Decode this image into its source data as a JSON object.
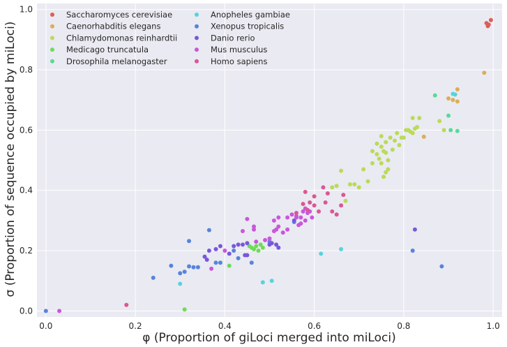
{
  "chart_data": {
    "type": "scatter",
    "title": "",
    "xlabel": "φ (Proportion of giLoci merged into miLoci)",
    "ylabel": "σ (Proportion of sequence occupied by miLoci)",
    "xlim": [
      -0.02,
      1.02
    ],
    "ylim": [
      -0.02,
      1.02
    ],
    "xticks": [
      0.0,
      0.2,
      0.4,
      0.6,
      0.8,
      1.0
    ],
    "yticks": [
      0.0,
      0.2,
      0.4,
      0.6,
      0.8,
      1.0
    ],
    "xtick_labels": [
      "0.0",
      "0.2",
      "0.4",
      "0.6",
      "0.8",
      "1.0"
    ],
    "ytick_labels": [
      "0.0",
      "0.2",
      "0.4",
      "0.6",
      "0.8",
      "1.0"
    ],
    "grid": true,
    "background": "#eaeaf2",
    "legend_position": "top-left",
    "legend_columns": 2,
    "series": [
      {
        "name": "Saccharomyces cerevisiae",
        "color": "#db5f57",
        "points": [
          [
            0.985,
            0.955
          ],
          [
            0.99,
            0.95
          ],
          [
            0.995,
            0.965
          ],
          [
            0.988,
            0.945
          ]
        ]
      },
      {
        "name": "Caenorhabditis elegans",
        "color": "#dbae57",
        "points": [
          [
            0.98,
            0.79
          ],
          [
            0.92,
            0.735
          ],
          [
            0.91,
            0.7
          ],
          [
            0.92,
            0.695
          ],
          [
            0.845,
            0.578
          ],
          [
            0.9,
            0.705
          ]
        ]
      },
      {
        "name": "Chlamydomonas reinhardtii",
        "color": "#b9db57",
        "points": [
          [
            0.68,
            0.42
          ],
          [
            0.66,
            0.465
          ],
          [
            0.67,
            0.365
          ],
          [
            0.69,
            0.42
          ],
          [
            0.7,
            0.41
          ],
          [
            0.71,
            0.47
          ],
          [
            0.72,
            0.43
          ],
          [
            0.73,
            0.49
          ],
          [
            0.74,
            0.52
          ],
          [
            0.745,
            0.505
          ],
          [
            0.75,
            0.545
          ],
          [
            0.755,
            0.53
          ],
          [
            0.76,
            0.56
          ],
          [
            0.75,
            0.58
          ],
          [
            0.77,
            0.575
          ],
          [
            0.765,
            0.47
          ],
          [
            0.76,
            0.46
          ],
          [
            0.78,
            0.565
          ],
          [
            0.79,
            0.55
          ],
          [
            0.8,
            0.575
          ],
          [
            0.81,
            0.6
          ],
          [
            0.815,
            0.595
          ],
          [
            0.82,
            0.59
          ],
          [
            0.83,
            0.61
          ],
          [
            0.835,
            0.64
          ],
          [
            0.82,
            0.64
          ],
          [
            0.88,
            0.63
          ],
          [
            0.89,
            0.6
          ],
          [
            0.74,
            0.555
          ],
          [
            0.75,
            0.49
          ],
          [
            0.76,
            0.525
          ],
          [
            0.64,
            0.41
          ],
          [
            0.65,
            0.415
          ],
          [
            0.73,
            0.53
          ],
          [
            0.785,
            0.59
          ],
          [
            0.795,
            0.575
          ],
          [
            0.805,
            0.6
          ],
          [
            0.825,
            0.605
          ],
          [
            0.765,
            0.5
          ],
          [
            0.775,
            0.535
          ],
          [
            0.755,
            0.445
          ]
        ]
      },
      {
        "name": "Medicago truncatula",
        "color": "#6edb57",
        "points": [
          [
            0.41,
            0.15
          ],
          [
            0.465,
            0.205
          ],
          [
            0.47,
            0.215
          ],
          [
            0.475,
            0.2
          ],
          [
            0.48,
            0.22
          ],
          [
            0.485,
            0.21
          ],
          [
            0.46,
            0.21
          ],
          [
            0.455,
            0.215
          ],
          [
            0.31,
            0.005
          ]
        ]
      },
      {
        "name": "Drosophila melanogaster",
        "color": "#57db94",
        "points": [
          [
            0.87,
            0.715
          ],
          [
            0.9,
            0.648
          ],
          [
            0.905,
            0.6
          ],
          [
            0.92,
            0.597
          ]
        ]
      },
      {
        "name": "Anopheles gambiae",
        "color": "#57d3db",
        "points": [
          [
            0.3,
            0.09
          ],
          [
            0.485,
            0.095
          ],
          [
            0.505,
            0.1
          ],
          [
            0.615,
            0.19
          ],
          [
            0.66,
            0.205
          ],
          [
            0.91,
            0.72
          ],
          [
            0.915,
            0.718
          ]
        ]
      },
      {
        "name": "Xenopus tropicalis",
        "color": "#5784db",
        "points": [
          [
            0.0,
            0.0
          ],
          [
            0.24,
            0.11
          ],
          [
            0.28,
            0.15
          ],
          [
            0.3,
            0.125
          ],
          [
            0.31,
            0.13
          ],
          [
            0.32,
            0.148
          ],
          [
            0.33,
            0.145
          ],
          [
            0.34,
            0.145
          ],
          [
            0.32,
            0.232
          ],
          [
            0.365,
            0.268
          ],
          [
            0.38,
            0.16
          ],
          [
            0.39,
            0.16
          ],
          [
            0.46,
            0.16
          ],
          [
            0.5,
            0.23
          ],
          [
            0.555,
            0.295
          ],
          [
            0.82,
            0.2
          ],
          [
            0.885,
            0.148
          ],
          [
            0.43,
            0.175
          ],
          [
            0.42,
            0.2
          ]
        ]
      },
      {
        "name": "Danio rerio",
        "color": "#7957db",
        "points": [
          [
            0.355,
            0.18
          ],
          [
            0.36,
            0.17
          ],
          [
            0.365,
            0.2
          ],
          [
            0.38,
            0.205
          ],
          [
            0.39,
            0.215
          ],
          [
            0.41,
            0.19
          ],
          [
            0.42,
            0.215
          ],
          [
            0.43,
            0.22
          ],
          [
            0.44,
            0.22
          ],
          [
            0.45,
            0.225
          ],
          [
            0.45,
            0.185
          ],
          [
            0.445,
            0.185
          ],
          [
            0.5,
            0.22
          ],
          [
            0.505,
            0.225
          ],
          [
            0.515,
            0.22
          ],
          [
            0.52,
            0.21
          ],
          [
            0.555,
            0.3
          ],
          [
            0.825,
            0.27
          ]
        ]
      },
      {
        "name": "Mus musculus",
        "color": "#c957db",
        "points": [
          [
            0.03,
            0.0
          ],
          [
            0.37,
            0.14
          ],
          [
            0.465,
            0.27
          ],
          [
            0.465,
            0.28
          ],
          [
            0.47,
            0.23
          ],
          [
            0.49,
            0.235
          ],
          [
            0.5,
            0.24
          ],
          [
            0.5,
            0.24
          ],
          [
            0.51,
            0.3
          ],
          [
            0.51,
            0.265
          ],
          [
            0.515,
            0.27
          ],
          [
            0.52,
            0.28
          ],
          [
            0.53,
            0.26
          ],
          [
            0.54,
            0.27
          ],
          [
            0.54,
            0.31
          ],
          [
            0.55,
            0.32
          ],
          [
            0.56,
            0.315
          ],
          [
            0.565,
            0.285
          ],
          [
            0.57,
            0.31
          ],
          [
            0.575,
            0.33
          ],
          [
            0.58,
            0.34
          ],
          [
            0.585,
            0.325
          ],
          [
            0.59,
            0.33
          ],
          [
            0.595,
            0.31
          ],
          [
            0.4,
            0.2
          ],
          [
            0.44,
            0.265
          ],
          [
            0.56,
            0.31
          ],
          [
            0.52,
            0.31
          ],
          [
            0.57,
            0.29
          ],
          [
            0.45,
            0.305
          ],
          [
            0.58,
            0.3
          ]
        ]
      },
      {
        "name": "Homo sapiens",
        "color": "#db5794",
        "points": [
          [
            0.18,
            0.02
          ],
          [
            0.56,
            0.325
          ],
          [
            0.575,
            0.355
          ],
          [
            0.58,
            0.395
          ],
          [
            0.59,
            0.36
          ],
          [
            0.6,
            0.35
          ],
          [
            0.6,
            0.38
          ],
          [
            0.61,
            0.33
          ],
          [
            0.62,
            0.41
          ],
          [
            0.625,
            0.36
          ],
          [
            0.64,
            0.33
          ],
          [
            0.65,
            0.32
          ],
          [
            0.66,
            0.35
          ],
          [
            0.665,
            0.385
          ],
          [
            0.585,
            0.335
          ],
          [
            0.63,
            0.39
          ]
        ]
      }
    ]
  }
}
